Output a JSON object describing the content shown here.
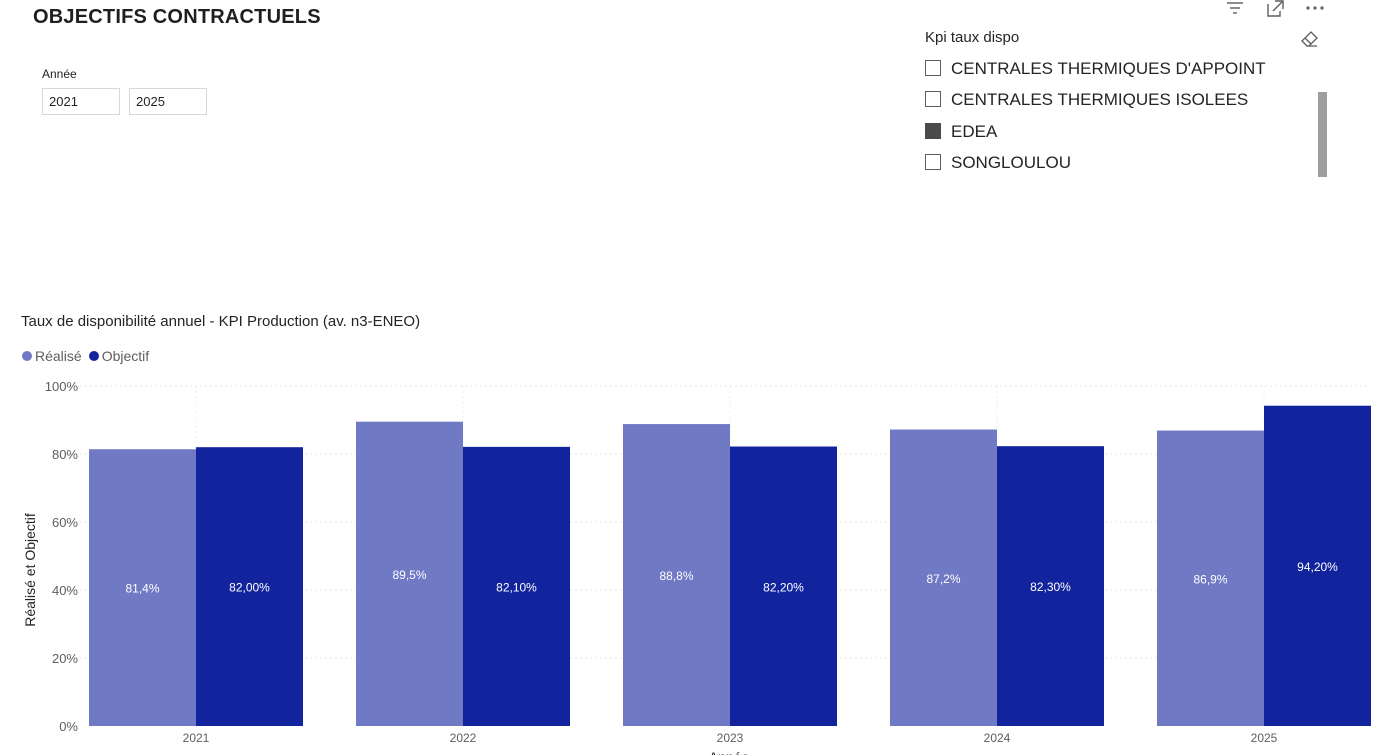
{
  "page": {
    "title": "OBJECTIFS CONTRACTUELS"
  },
  "year_slicer": {
    "label": "Année",
    "start": "2021",
    "end": "2025"
  },
  "visual_header": {
    "icons": [
      "filter-icon",
      "focus-mode-icon",
      "more-options-icon"
    ]
  },
  "kpi_slicer": {
    "title": "Kpi taux dispo",
    "clear_icon": "eraser-icon",
    "items": [
      {
        "label": "CENTRALES THERMIQUES D'APPOINT",
        "checked": false
      },
      {
        "label": "CENTRALES THERMIQUES ISOLEES",
        "checked": false
      },
      {
        "label": "EDEA",
        "checked": true
      },
      {
        "label": "SONGLOULOU",
        "checked": false
      }
    ]
  },
  "chart": {
    "title": "Taux de disponibilité annuel - KPI Production (av. n3-ENEO)"
  },
  "chart_data": {
    "type": "bar",
    "title": "Taux de disponibilité annuel - KPI Production (av. n3-ENEO)",
    "xlabel": "Année",
    "ylabel": "Réalisé et Objectif",
    "ylim": [
      0,
      100
    ],
    "y_ticks": [
      "0%",
      "20%",
      "40%",
      "60%",
      "80%",
      "100%"
    ],
    "y_tick_values": [
      0,
      20,
      40,
      60,
      80,
      100
    ],
    "grid": true,
    "legend_position": "top-left",
    "categories": [
      "2021",
      "2022",
      "2023",
      "2024",
      "2025"
    ],
    "series": [
      {
        "name": "Réalisé",
        "color": "#7079c4",
        "values": [
          81.4,
          89.5,
          88.8,
          87.2,
          86.9
        ],
        "labels": [
          "81,4%",
          "89,5%",
          "88,8%",
          "87,2%",
          "86,9%"
        ]
      },
      {
        "name": "Objectif",
        "color": "#12239e",
        "values": [
          82.0,
          82.1,
          82.2,
          82.3,
          94.2
        ],
        "labels": [
          "82,00%",
          "82,10%",
          "82,20%",
          "82,30%",
          "94,20%"
        ]
      }
    ]
  }
}
